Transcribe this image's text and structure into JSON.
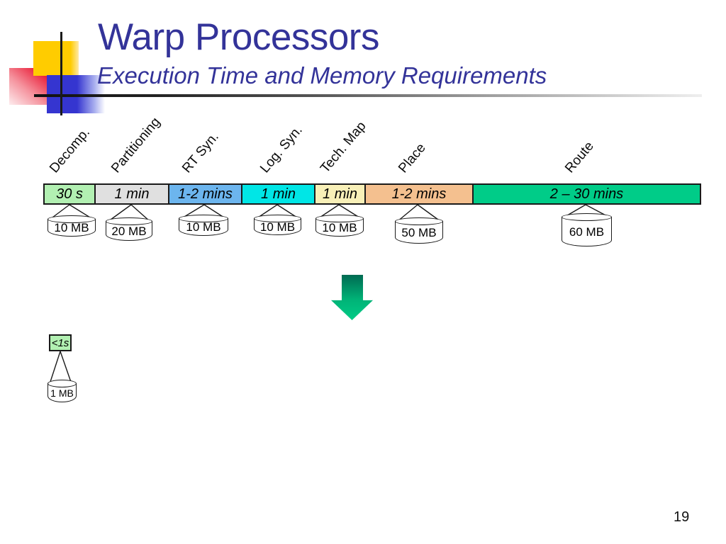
{
  "slide": {
    "title": "Warp Processors",
    "subtitle": "Execution Time and Memory Requirements",
    "page_number": "19",
    "accent_color": "#333399"
  },
  "pipeline": {
    "stages": [
      {
        "label": "Decomp.",
        "time": "30 s",
        "memory": "10 MB",
        "color": "#B2F0B2"
      },
      {
        "label": "Partitioning",
        "time": "1 min",
        "memory": "20 MB",
        "color": "#E0E0E0"
      },
      {
        "label": "RT Syn.",
        "time": "1-2 mins",
        "memory": "10 MB",
        "color": "#6CB5EE"
      },
      {
        "label": "Log. Syn.",
        "time": "1 min",
        "memory": "10 MB",
        "color": "#00E6E6"
      },
      {
        "label": "Tech. Map",
        "time": "1 min",
        "memory": "10 MB",
        "color": "#F8F0B8"
      },
      {
        "label": "Place",
        "time": "1-2 mins",
        "memory": "50 MB",
        "color": "#F4C08F"
      },
      {
        "label": "Route",
        "time": "2 – 30 mins",
        "memory": "60 MB",
        "color": "#00CC88"
      }
    ]
  },
  "transform_arrow": {
    "icon": "down-arrow-icon",
    "color_top": "#006B52",
    "color_bottom": "#00CC86"
  },
  "fast_path": {
    "time": "<1s",
    "memory": "1 MB",
    "color": "#B2F0B2"
  }
}
